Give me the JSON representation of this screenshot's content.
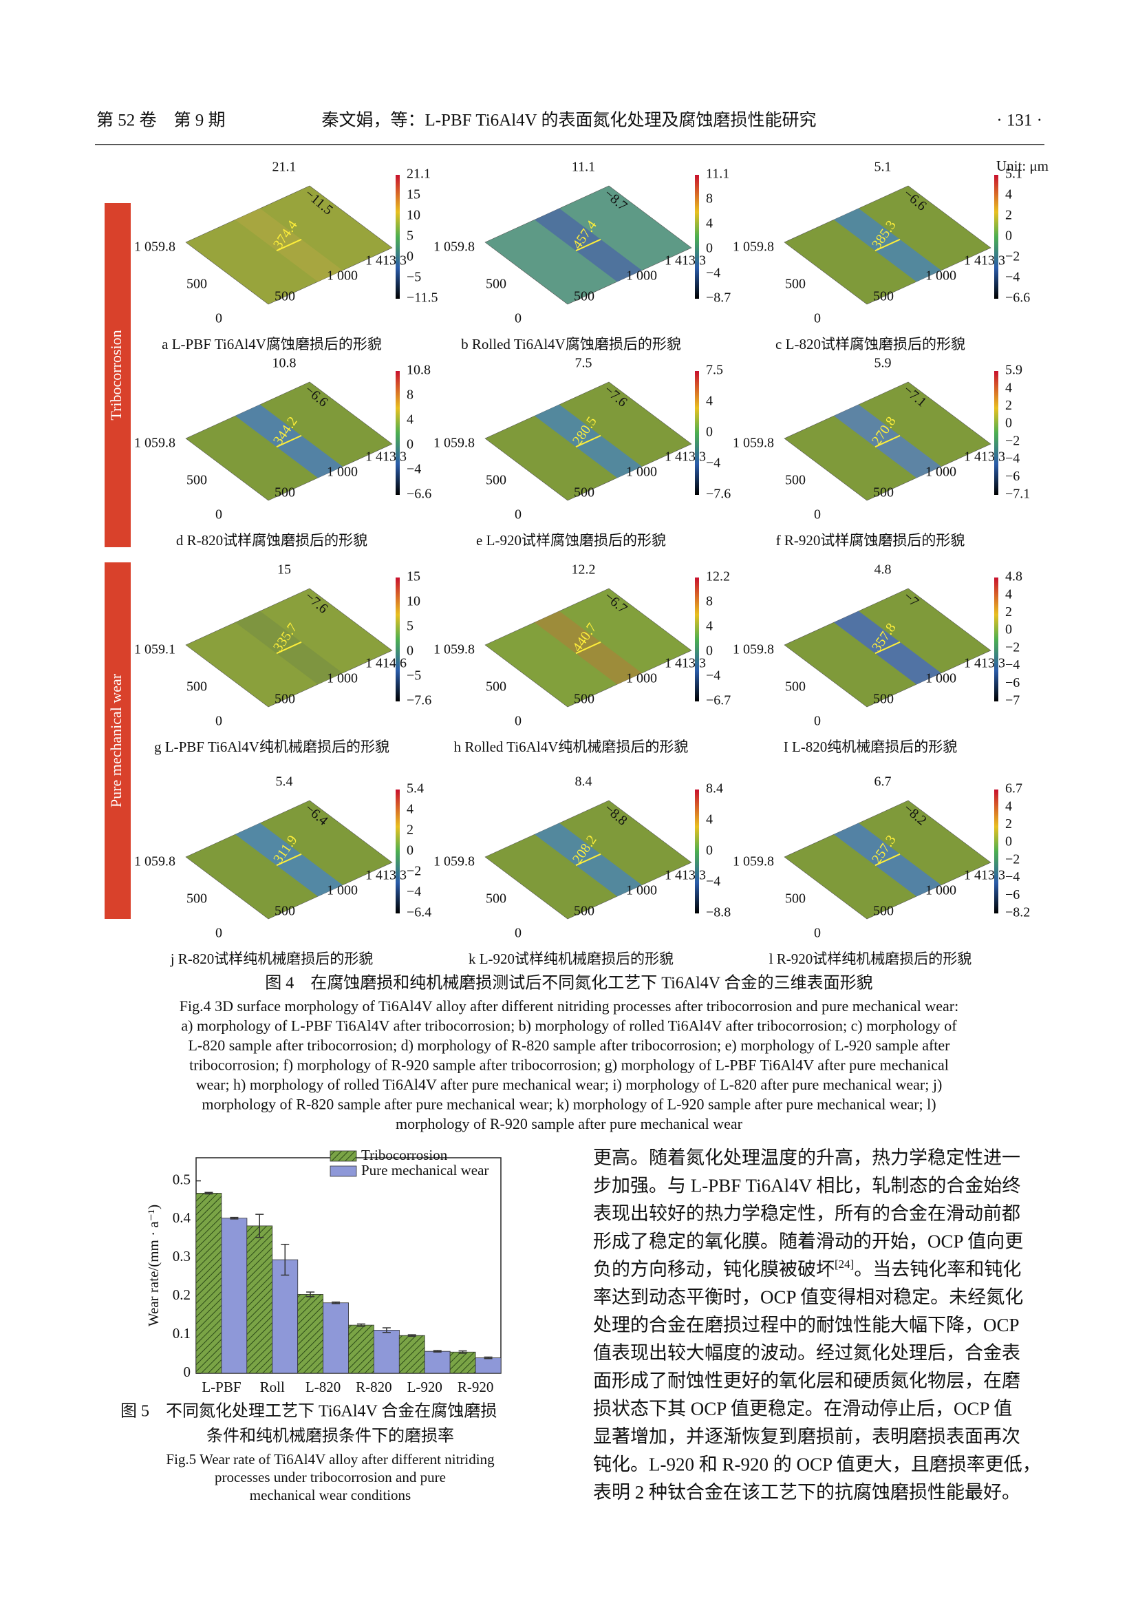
{
  "header": {
    "left": "第 52 卷　第 9 期",
    "center": "秦文娟，等：L-PBF Ti6Al4V 的表面氮化处理及腐蚀磨损性能研究",
    "right": "· 131 ·"
  },
  "figure4": {
    "unit": "Unit: μm",
    "groups": [
      "Tribocorrosion",
      "Pure mechanical wear"
    ],
    "panels": [
      {
        "top": "21.1",
        "diag": "−11.5",
        "y_max": "1 059.8",
        "y_mid": "500",
        "origin": "0",
        "x_mid": "500",
        "x_1000": "1 000",
        "x_max": "1 413.3",
        "track": "374.4",
        "colorbar": [
          "21.1",
          "15",
          "10",
          "5",
          "0",
          "−5",
          "−11.5"
        ],
        "caption": "a L-PBF Ti6Al4V腐蚀磨损后的形貌"
      },
      {
        "top": "11.1",
        "diag": "−8.7",
        "y_max": "1 059.8",
        "y_mid": "500",
        "origin": "0",
        "x_mid": "500",
        "x_1000": "1 000",
        "x_max": "1 413.3",
        "track": "457.4",
        "colorbar": [
          "11.1",
          "8",
          "4",
          "0",
          "−4",
          "−8.7"
        ],
        "caption": "b Rolled Ti6Al4V腐蚀磨损后的形貌"
      },
      {
        "top": "5.1",
        "diag": "−6.6",
        "y_max": "1 059.8",
        "y_mid": "500",
        "origin": "0",
        "x_mid": "500",
        "x_1000": "1 000",
        "x_max": "1 413.3",
        "track": "385.3",
        "colorbar": [
          "5.1",
          "4",
          "2",
          "0",
          "−2",
          "−4",
          "−6.6"
        ],
        "caption": "c L-820试样腐蚀磨损后的形貌"
      },
      {
        "top": "10.8",
        "diag": "−6.6",
        "y_max": "1 059.8",
        "y_mid": "500",
        "origin": "0",
        "x_mid": "500",
        "x_1000": "1 000",
        "x_max": "1 413.3",
        "track": "344.2",
        "colorbar": [
          "10.8",
          "8",
          "4",
          "0",
          "−4",
          "−6.6"
        ],
        "caption": "d R-820试样腐蚀磨损后的形貌"
      },
      {
        "top": "7.5",
        "diag": "−7.6",
        "y_max": "1 059.8",
        "y_mid": "500",
        "origin": "0",
        "x_mid": "500",
        "x_1000": "1 000",
        "x_max": "1 413.3",
        "track": "280.5",
        "colorbar": [
          "7.5",
          "4",
          "0",
          "−4",
          "−7.6"
        ],
        "caption": "e L-920试样腐蚀磨损后的形貌"
      },
      {
        "top": "5.9",
        "diag": "−7.1",
        "y_max": "1 059.8",
        "y_mid": "500",
        "origin": "0",
        "x_mid": "500",
        "x_1000": "1 000",
        "x_max": "1 413.3",
        "track": "270.8",
        "colorbar": [
          "5.9",
          "4",
          "2",
          "0",
          "−2",
          "−4",
          "−6",
          "−7.1"
        ],
        "caption": "f R-920试样腐蚀磨损后的形貌"
      },
      {
        "top": "15",
        "diag": "−7.6",
        "y_max": "1 059.1",
        "y_mid": "500",
        "origin": "0",
        "x_mid": "500",
        "x_1000": "1 000",
        "x_max": "1 414.6",
        "track": "335.7",
        "colorbar": [
          "15",
          "10",
          "5",
          "0",
          "−5",
          "−7.6"
        ],
        "caption": "g L-PBF Ti6Al4V纯机械磨损后的形貌"
      },
      {
        "top": "12.2",
        "diag": "−6.7",
        "y_max": "1 059.8",
        "y_mid": "500",
        "origin": "0",
        "x_mid": "500",
        "x_1000": "1 000",
        "x_max": "1 413.3",
        "track": "440.7",
        "colorbar": [
          "12.2",
          "8",
          "4",
          "0",
          "−4",
          "−6.7"
        ],
        "caption": "h Rolled Ti6Al4V纯机械磨损后的形貌"
      },
      {
        "top": "4.8",
        "diag": "−7",
        "y_max": "1 059.8",
        "y_mid": "500",
        "origin": "0",
        "x_mid": "500",
        "x_1000": "1 000",
        "x_max": "1 413.3",
        "track": "357.8",
        "colorbar": [
          "4.8",
          "4",
          "2",
          "0",
          "−2",
          "−4",
          "−6",
          "−7"
        ],
        "caption": "I L-820纯机械磨损后的形貌"
      },
      {
        "top": "5.4",
        "diag": "−6.4",
        "y_max": "1 059.8",
        "y_mid": "500",
        "origin": "0",
        "x_mid": "500",
        "x_1000": "1 000",
        "x_max": "1 413.3",
        "track": "311.9",
        "colorbar": [
          "5.4",
          "4",
          "2",
          "0",
          "−2",
          "−4",
          "−6.4"
        ],
        "caption": "j R-820试样纯机械磨损后的形貌"
      },
      {
        "top": "8.4",
        "diag": "−8.8",
        "y_max": "1 059.8",
        "y_mid": "500",
        "origin": "0",
        "x_mid": "500",
        "x_1000": "1 000",
        "x_max": "1 413.3",
        "track": "208.2",
        "colorbar": [
          "8.4",
          "4",
          "0",
          "−4",
          "−8.8"
        ],
        "caption": "k L-920试样纯机械磨损后的形貌"
      },
      {
        "top": "6.7",
        "diag": "−8.2",
        "y_max": "1 059.8",
        "y_mid": "500",
        "origin": "0",
        "x_mid": "500",
        "x_1000": "1 000",
        "x_max": "1 413.3",
        "track": "257.3",
        "colorbar": [
          "6.7",
          "4",
          "2",
          "0",
          "−2",
          "−4",
          "−6",
          "−8.2"
        ],
        "caption": "l R-920试样纯机械磨损后的形貌"
      }
    ],
    "caption_cn": "图 4　在腐蚀磨损和纯机械磨损测试后不同氮化工艺下 Ti6Al4V 合金的三维表面形貌",
    "caption_en": [
      "Fig.4 3D surface morphology of Ti6Al4V alloy after different nitriding processes after tribocorrosion and pure mechanical wear:",
      "a) morphology of L-PBF Ti6Al4V after tribocorrosion; b) morphology of rolled Ti6Al4V after tribocorrosion; c) morphology of",
      "L-820 sample after tribocorrosion; d) morphology of R-820 sample after tribocorrosion; e) morphology of L-920 sample after",
      "tribocorrosion; f) morphology of R-920 sample after tribocorrosion; g) morphology of L-PBF Ti6Al4V after pure mechanical",
      "wear; h) morphology of rolled Ti6Al4V after pure mechanical wear; i) morphology of L-820 after pure mechanical wear; j)",
      "morphology of R-820 sample after pure mechanical wear; k) morphology of L-920 sample after pure mechanical wear; l)",
      "morphology of R-920 sample after pure mechanical wear"
    ]
  },
  "chart_data": {
    "type": "bar",
    "y_label": "Wear rate/(mm · a⁻¹)",
    "categories": [
      "L-PBF",
      "Roll",
      "L-820",
      "R-820",
      "L-920",
      "R-920"
    ],
    "series": [
      {
        "name": "Tribocorrosion",
        "color": "#7aa446",
        "values": [
          0.468,
          0.383,
          0.205,
          0.125,
          0.098,
          0.055
        ],
        "errors": [
          0.002,
          0.03,
          0.006,
          0.003,
          0.002,
          0.003
        ]
      },
      {
        "name": "Pure mechanical wear",
        "color": "#8e98d8",
        "values": [
          0.403,
          0.295,
          0.183,
          0.112,
          0.057,
          0.04
        ],
        "errors": [
          0.002,
          0.04,
          0.002,
          0.006,
          0.002,
          0.002
        ]
      }
    ],
    "ylim": [
      0,
      0.56
    ],
    "yticks": [
      0,
      0.1,
      0.2,
      0.3,
      0.4,
      0.5
    ],
    "caption_cn": [
      "图 5　不同氮化处理工艺下 Ti6Al4V 合金在腐蚀磨损",
      "条件和纯机械磨损条件下的磨损率"
    ],
    "caption_en": [
      "Fig.5 Wear rate of Ti6Al4V alloy after different nitriding",
      "processes under tribocorrosion and pure",
      "mechanical wear conditions"
    ]
  },
  "body": {
    "lines": [
      "更高。随着氮化处理温度的升高，热力学稳定性进一",
      "步加强。与 L-PBF Ti6Al4V 相比，轧制态的合金始终",
      "表现出较好的热力学稳定性，所有的合金在滑动前都",
      "形成了稳定的氧化膜。随着滑动的开始，OCP 值向更",
      {
        "text": "负的方向移动，钝化膜被破坏",
        "ref": "[24]",
        "rest": "。当去钝化率和钝化"
      },
      "率达到动态平衡时，OCP 值变得相对稳定。未经氮化",
      "处理的合金在磨损过程中的耐蚀性能大幅下降，OCP",
      "值表现出较大幅度的波动。经过氮化处理后，合金表",
      "面形成了耐蚀性更好的氧化层和硬质氮化物层，在磨",
      "损状态下其 OCP 值更稳定。在滑动停止后，OCP 值",
      "显著增加，并逐渐恢复到磨损前，表明磨损表面再次",
      "钝化。L-920 和 R-920 的 OCP 值更大，且磨损率更低，",
      "表明 2 种钛合金在该工艺下的抗腐蚀磨损性能最好。"
    ]
  }
}
